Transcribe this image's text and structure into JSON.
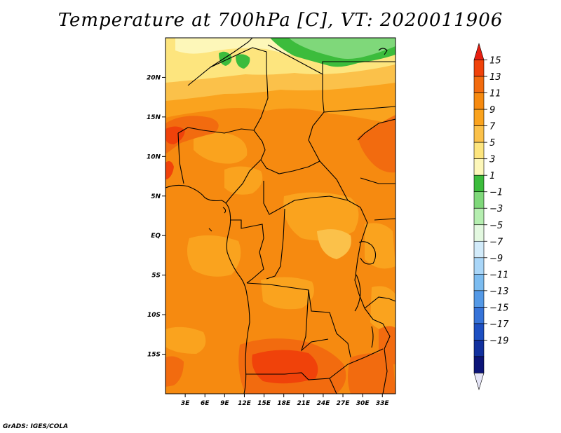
{
  "title": "Temperature at 700hPa [C], VT: 2020011906",
  "footer": "GrADS: IGES/COLA",
  "map": {
    "lat_range": [
      -20,
      25
    ],
    "lon_range": [
      0,
      35
    ],
    "lat_ticks": [
      {
        "value": 20,
        "label": "20N"
      },
      {
        "value": 15,
        "label": "15N"
      },
      {
        "value": 10,
        "label": "10N"
      },
      {
        "value": 5,
        "label": "5N"
      },
      {
        "value": 0,
        "label": "EQ"
      },
      {
        "value": -5,
        "label": "5S"
      },
      {
        "value": -10,
        "label": "10S"
      },
      {
        "value": -15,
        "label": "15S"
      }
    ],
    "lon_ticks": [
      {
        "value": 3,
        "label": "3E"
      },
      {
        "value": 6,
        "label": "6E"
      },
      {
        "value": 9,
        "label": "9E"
      },
      {
        "value": 12,
        "label": "12E"
      },
      {
        "value": 15,
        "label": "15E"
      },
      {
        "value": 18,
        "label": "18E"
      },
      {
        "value": 21,
        "label": "21E"
      },
      {
        "value": 24,
        "label": "24E"
      },
      {
        "value": 27,
        "label": "27E"
      },
      {
        "value": 30,
        "label": "30E"
      },
      {
        "value": 33,
        "label": "33E"
      }
    ]
  },
  "colorbar": {
    "labels": [
      "15",
      "13",
      "11",
      "9",
      "7",
      "5",
      "3",
      "1",
      "−1",
      "−3",
      "−5",
      "−7",
      "−9",
      "−11",
      "−13",
      "−15",
      "−17",
      "−19"
    ],
    "colors_top_to_bottom": [
      "#e61e10",
      "#f0420a",
      "#f26b0f",
      "#f68a10",
      "#faa31e",
      "#fbc14a",
      "#fde57e",
      "#fdf7b9",
      "#3cbc3c",
      "#7fd87a",
      "#b5eeb0",
      "#e3f8e0",
      "#d2ebfa",
      "#a9d6f8",
      "#7cbcf0",
      "#5499e6",
      "#3673d8",
      "#1d4fc2",
      "#11309e",
      "#0c1478",
      "#e5e5f7"
    ]
  }
}
